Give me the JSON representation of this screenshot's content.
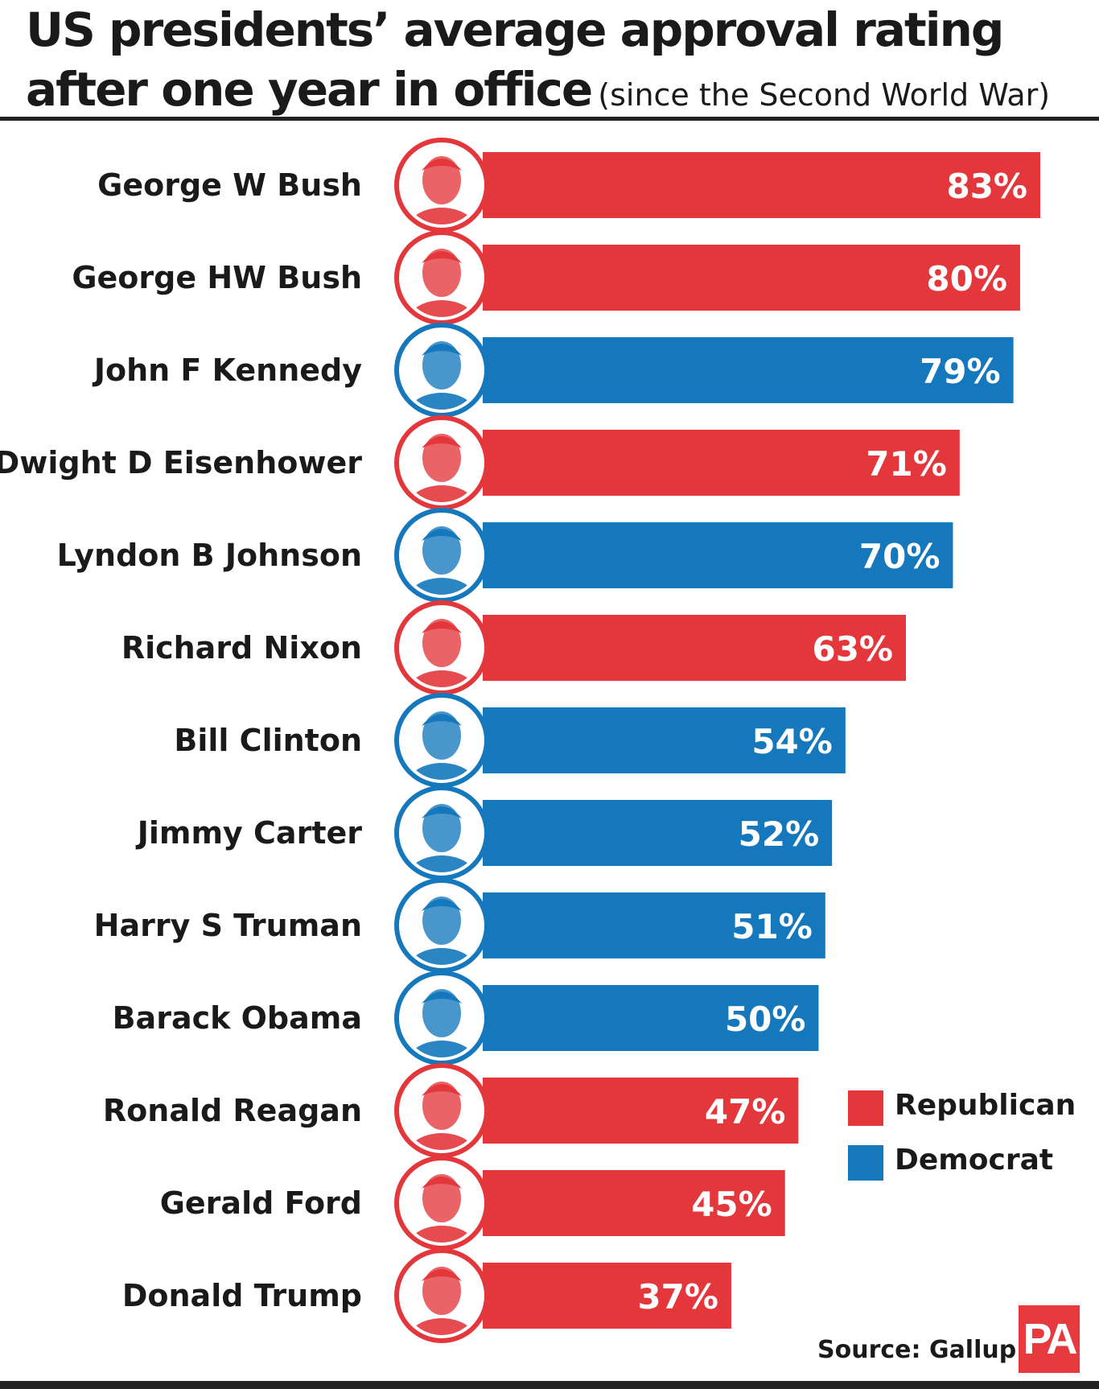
{
  "header": {
    "title_line1": "US presidents’ average approval rating",
    "title_line2": "after one year in office",
    "subtitle": "(since the Second World War)"
  },
  "colors": {
    "republican": "#e3373c",
    "democrat": "#1578bd",
    "text": "#1a1a1a"
  },
  "chart_data": {
    "type": "bar",
    "orientation": "horizontal",
    "xlim": [
      0,
      83
    ],
    "grid": false,
    "legend_position": "bottom-right",
    "categories": [
      "George W Bush",
      "George HW Bush",
      "John F Kennedy",
      "Dwight D Eisenhower",
      "Lyndon B Johnson",
      "Richard Nixon",
      "Bill Clinton",
      "Jimmy Carter",
      "Harry S Truman",
      "Barack Obama",
      "Ronald Reagan",
      "Gerald Ford",
      "Donald Trump"
    ],
    "values": [
      83,
      80,
      79,
      71,
      70,
      63,
      54,
      52,
      51,
      50,
      47,
      45,
      37
    ],
    "value_labels": [
      "83%",
      "80%",
      "79%",
      "71%",
      "70%",
      "63%",
      "54%",
      "52%",
      "51%",
      "50%",
      "47%",
      "45%",
      "37%"
    ],
    "party": [
      "Republican",
      "Republican",
      "Democrat",
      "Republican",
      "Democrat",
      "Republican",
      "Democrat",
      "Democrat",
      "Democrat",
      "Democrat",
      "Republican",
      "Republican",
      "Republican"
    ],
    "portrait_icons": [
      "portrait-icon",
      "portrait-icon",
      "portrait-icon",
      "portrait-icon",
      "portrait-icon",
      "portrait-icon",
      "portrait-icon",
      "portrait-icon",
      "portrait-icon",
      "portrait-icon",
      "portrait-icon",
      "portrait-icon",
      "portrait-icon"
    ]
  },
  "legend": {
    "republican_label": "Republican",
    "democrat_label": "Democrat"
  },
  "footer": {
    "source": "Source: Gallup",
    "logo": "PA"
  }
}
